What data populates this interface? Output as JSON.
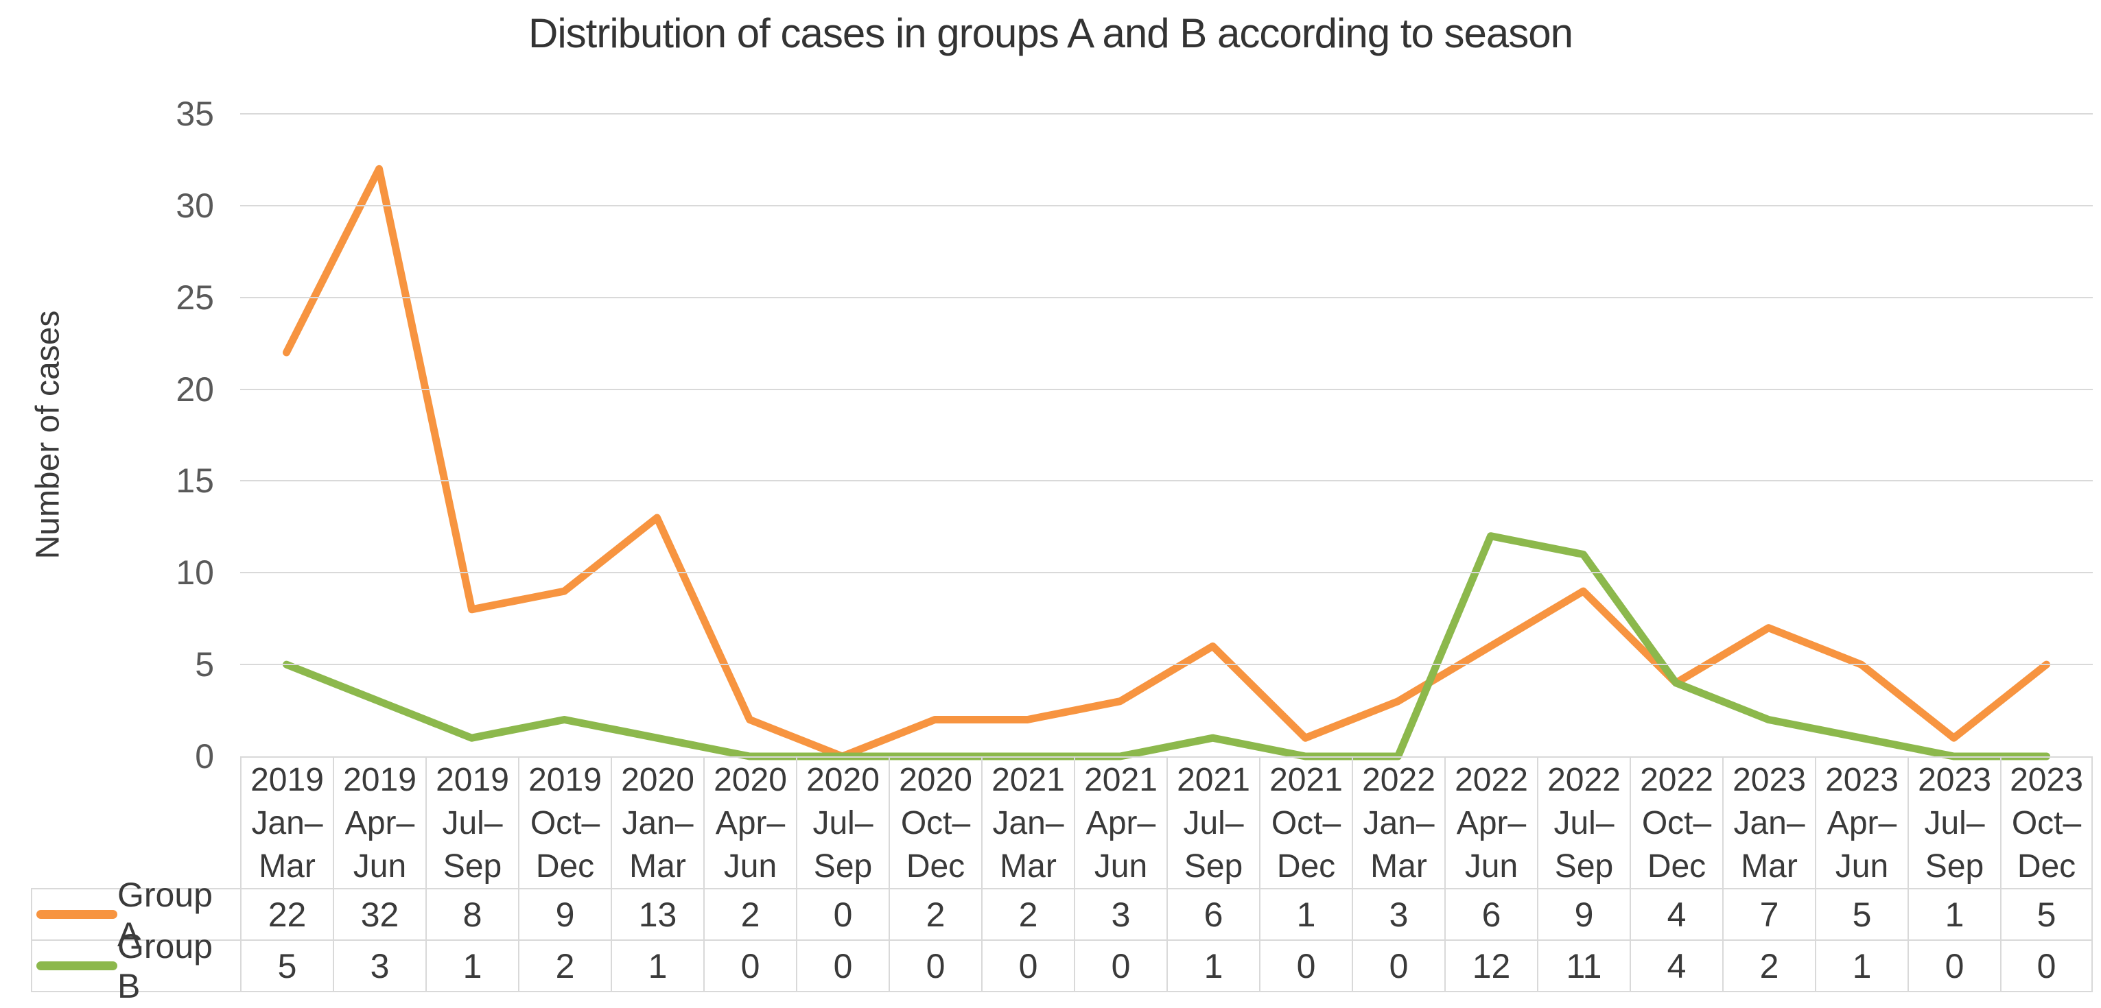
{
  "title": "Distribution of cases in groups A and B according to season",
  "y_axis": {
    "label": "Number of cases",
    "ticks": [
      0,
      5,
      10,
      15,
      20,
      25,
      30,
      35
    ]
  },
  "colors": {
    "gridline": "#D9D9D9",
    "table_border": "#D9D9D9",
    "tick_text": "#595959",
    "text": "#3A3A3A",
    "title_text": "#333333"
  },
  "chart_data": {
    "type": "line",
    "title": "Distribution of cases in groups A and B according to season",
    "xlabel": "",
    "ylabel": "Number of cases",
    "ylim": [
      0,
      35
    ],
    "grid": true,
    "legend_position": "data-table-left",
    "categories": [
      "2019 Jan–Mar",
      "2019 Apr–Jun",
      "2019 Jul–Sep",
      "2019 Oct–Dec",
      "2020 Jan–Mar",
      "2020 Apr–Jun",
      "2020 Jul–Sep",
      "2020 Oct–Dec",
      "2021 Jan–Mar",
      "2021 Apr–Jun",
      "2021 Jul–Sep",
      "2021 Oct–Dec",
      "2022 Jan–Mar",
      "2022 Apr–Jun",
      "2022 Jul–Sep",
      "2022 Oct–Dec",
      "2023 Jan–Mar",
      "2023 Apr–Jun",
      "2023 Jul–Sep",
      "2023 Oct–Dec"
    ],
    "category_lines": [
      [
        "2019",
        "Jan–",
        "Mar"
      ],
      [
        "2019",
        "Apr–",
        "Jun"
      ],
      [
        "2019",
        "Jul–",
        "Sep"
      ],
      [
        "2019",
        "Oct–",
        "Dec"
      ],
      [
        "2020",
        "Jan–",
        "Mar"
      ],
      [
        "2020",
        "Apr–",
        "Jun"
      ],
      [
        "2020",
        "Jul–",
        "Sep"
      ],
      [
        "2020",
        "Oct–",
        "Dec"
      ],
      [
        "2021",
        "Jan–",
        "Mar"
      ],
      [
        "2021",
        "Apr–",
        "Jun"
      ],
      [
        "2021",
        "Jul–",
        "Sep"
      ],
      [
        "2021",
        "Oct–",
        "Dec"
      ],
      [
        "2022",
        "Jan–",
        "Mar"
      ],
      [
        "2022",
        "Apr–",
        "Jun"
      ],
      [
        "2022",
        "Jul–",
        "Sep"
      ],
      [
        "2022",
        "Oct–",
        "Dec"
      ],
      [
        "2023",
        "Jan–",
        "Mar"
      ],
      [
        "2023",
        "Apr–",
        "Jun"
      ],
      [
        "2023",
        "Jul–",
        "Sep"
      ],
      [
        "2023",
        "Oct–",
        "Dec"
      ]
    ],
    "series": [
      {
        "name": "Group A",
        "color": "#F79440",
        "values": [
          22,
          32,
          8,
          9,
          13,
          2,
          0,
          2,
          2,
          3,
          6,
          1,
          3,
          6,
          9,
          4,
          7,
          5,
          1,
          5
        ]
      },
      {
        "name": "Group B",
        "color": "#8CB84C",
        "values": [
          5,
          3,
          1,
          2,
          1,
          0,
          0,
          0,
          0,
          0,
          1,
          0,
          0,
          12,
          11,
          4,
          2,
          1,
          0,
          0
        ]
      }
    ]
  }
}
